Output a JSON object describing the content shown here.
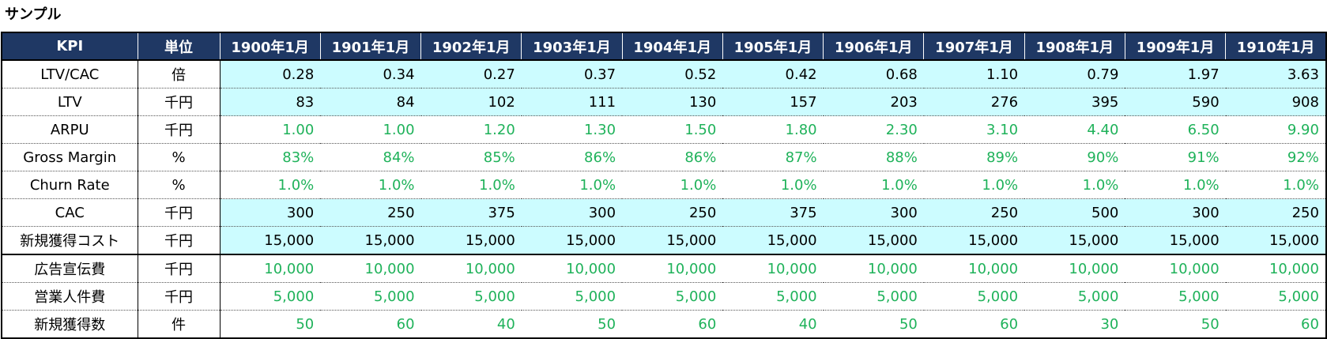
{
  "title": "サンプル",
  "header": {
    "kpi": "KPI",
    "unit": "単位",
    "months": [
      "1900年1月",
      "1901年1月",
      "1902年1月",
      "1903年1月",
      "1904年1月",
      "1905年1月",
      "1906年1月",
      "1907年1月",
      "1908年1月",
      "1909年1月",
      "1910年1月"
    ]
  },
  "colors": {
    "header_bg": "#1f3864",
    "calc_bg": "#ccfcff",
    "input_text": "#1fb25a"
  },
  "rows": [
    {
      "kpi": "LTV/CAC",
      "unit": "倍",
      "kind": "calc",
      "values": [
        "0.28",
        "0.34",
        "0.27",
        "0.37",
        "0.52",
        "0.42",
        "0.68",
        "1.10",
        "0.79",
        "1.97",
        "3.63"
      ]
    },
    {
      "kpi": "LTV",
      "unit": "千円",
      "kind": "calc",
      "values": [
        "83",
        "84",
        "102",
        "111",
        "130",
        "157",
        "203",
        "276",
        "395",
        "590",
        "908"
      ]
    },
    {
      "kpi": "ARPU",
      "unit": "千円",
      "kind": "input",
      "values": [
        "1.00",
        "1.00",
        "1.20",
        "1.30",
        "1.50",
        "1.80",
        "2.30",
        "3.10",
        "4.40",
        "6.50",
        "9.90"
      ]
    },
    {
      "kpi": "Gross Margin",
      "unit": "%",
      "kind": "input",
      "values": [
        "83%",
        "84%",
        "85%",
        "86%",
        "86%",
        "87%",
        "88%",
        "89%",
        "90%",
        "91%",
        "92%"
      ]
    },
    {
      "kpi": "Churn Rate",
      "unit": "%",
      "kind": "input",
      "values": [
        "1.0%",
        "1.0%",
        "1.0%",
        "1.0%",
        "1.0%",
        "1.0%",
        "1.0%",
        "1.0%",
        "1.0%",
        "1.0%",
        "1.0%"
      ]
    },
    {
      "kpi": "CAC",
      "unit": "千円",
      "kind": "calc",
      "values": [
        "300",
        "250",
        "375",
        "300",
        "250",
        "375",
        "300",
        "250",
        "500",
        "300",
        "250"
      ]
    },
    {
      "kpi": "新規獲得コスト",
      "unit": "千円",
      "kind": "calc",
      "values": [
        "15,000",
        "15,000",
        "15,000",
        "15,000",
        "15,000",
        "15,000",
        "15,000",
        "15,000",
        "15,000",
        "15,000",
        "15,000"
      ]
    },
    {
      "kpi": "広告宣伝費",
      "unit": "千円",
      "kind": "input",
      "values": [
        "10,000",
        "10,000",
        "10,000",
        "10,000",
        "10,000",
        "10,000",
        "10,000",
        "10,000",
        "10,000",
        "10,000",
        "10,000"
      ]
    },
    {
      "kpi": "営業人件費",
      "unit": "千円",
      "kind": "input",
      "values": [
        "5,000",
        "5,000",
        "5,000",
        "5,000",
        "5,000",
        "5,000",
        "5,000",
        "5,000",
        "5,000",
        "5,000",
        "5,000"
      ]
    },
    {
      "kpi": "新規獲得数",
      "unit": "件",
      "kind": "input",
      "values": [
        "50",
        "60",
        "40",
        "50",
        "60",
        "40",
        "50",
        "60",
        "30",
        "50",
        "60"
      ]
    }
  ]
}
